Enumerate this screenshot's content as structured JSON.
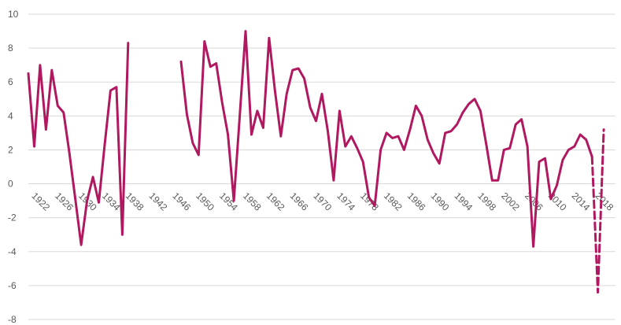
{
  "chart_data": {
    "type": "line",
    "title": "",
    "xlabel": "",
    "ylabel": "",
    "ylim": [
      -8,
      10
    ],
    "yticks": [
      10,
      8,
      6,
      4,
      2,
      0,
      -2,
      -4,
      -6,
      -8
    ],
    "xlim": [
      1921,
      2021
    ],
    "xticks": [
      1922,
      1926,
      1930,
      1934,
      1938,
      1942,
      1946,
      1950,
      1954,
      1958,
      1962,
      1966,
      1970,
      1974,
      1978,
      1982,
      1986,
      1990,
      1994,
      1998,
      2002,
      2006,
      2010,
      2014,
      2018
    ],
    "grid": true,
    "legend": "none",
    "color": "#b0185f",
    "series": [
      {
        "style": "solid",
        "points": [
          [
            1921,
            6.5
          ],
          [
            1922,
            2.2
          ],
          [
            1923,
            7.0
          ],
          [
            1924,
            3.2
          ],
          [
            1925,
            6.7
          ],
          [
            1926,
            4.6
          ],
          [
            1927,
            4.2
          ],
          [
            1928,
            1.8
          ],
          [
            1929,
            -0.9
          ],
          [
            1930,
            -3.6
          ],
          [
            1931,
            -1.0
          ],
          [
            1932,
            0.4
          ],
          [
            1933,
            -1.1
          ],
          [
            1934,
            2.3
          ],
          [
            1935,
            5.5
          ],
          [
            1936,
            5.7
          ],
          [
            1937,
            -3.0
          ],
          [
            1938,
            8.3
          ]
        ]
      },
      {
        "style": "solid",
        "points": [
          [
            1947,
            7.2
          ],
          [
            1948,
            4.1
          ],
          [
            1949,
            2.4
          ],
          [
            1950,
            1.7
          ],
          [
            1951,
            8.4
          ],
          [
            1952,
            6.9
          ],
          [
            1953,
            7.1
          ],
          [
            1954,
            4.8
          ],
          [
            1955,
            2.9
          ],
          [
            1956,
            -1.0
          ],
          [
            1957,
            4.0
          ],
          [
            1958,
            9.0
          ],
          [
            1959,
            2.9
          ],
          [
            1960,
            4.3
          ],
          [
            1961,
            3.3
          ],
          [
            1962,
            8.6
          ],
          [
            1963,
            5.5
          ],
          [
            1964,
            2.8
          ],
          [
            1965,
            5.3
          ],
          [
            1966,
            6.7
          ],
          [
            1967,
            6.8
          ],
          [
            1968,
            6.2
          ],
          [
            1969,
            4.5
          ],
          [
            1970,
            3.7
          ],
          [
            1971,
            5.3
          ],
          [
            1972,
            3.1
          ],
          [
            1973,
            0.2
          ],
          [
            1974,
            4.3
          ],
          [
            1975,
            2.2
          ],
          [
            1976,
            2.8
          ],
          [
            1977,
            2.1
          ],
          [
            1978,
            1.3
          ],
          [
            1979,
            -0.8
          ],
          [
            1980,
            -1.3
          ],
          [
            1981,
            2.0
          ],
          [
            1982,
            3.0
          ],
          [
            1983,
            2.7
          ],
          [
            1984,
            2.8
          ],
          [
            1985,
            2.0
          ],
          [
            1986,
            3.2
          ],
          [
            1987,
            4.6
          ],
          [
            1988,
            4.0
          ],
          [
            1989,
            2.6
          ],
          [
            1990,
            1.8
          ],
          [
            1991,
            1.2
          ],
          [
            1992,
            3.0
          ],
          [
            1993,
            3.1
          ],
          [
            1994,
            3.5
          ],
          [
            1995,
            4.2
          ],
          [
            1996,
            4.7
          ],
          [
            1997,
            5.0
          ],
          [
            1998,
            4.3
          ],
          [
            1999,
            2.3
          ],
          [
            2000,
            0.2
          ],
          [
            2001,
            0.2
          ],
          [
            2002,
            2.0
          ],
          [
            2003,
            2.1
          ],
          [
            2004,
            3.5
          ],
          [
            2005,
            3.8
          ],
          [
            2006,
            2.2
          ],
          [
            2007,
            -3.7
          ],
          [
            2008,
            1.3
          ],
          [
            2009,
            1.5
          ],
          [
            2010,
            -0.9
          ],
          [
            2011,
            -0.1
          ],
          [
            2012,
            1.4
          ],
          [
            2013,
            2.0
          ],
          [
            2014,
            2.2
          ],
          [
            2015,
            2.9
          ],
          [
            2016,
            2.6
          ],
          [
            2017,
            1.6
          ]
        ]
      },
      {
        "style": "dashed",
        "points": [
          [
            2017,
            1.6
          ],
          [
            2018,
            -6.4
          ],
          [
            2019,
            3.2
          ]
        ]
      }
    ]
  }
}
